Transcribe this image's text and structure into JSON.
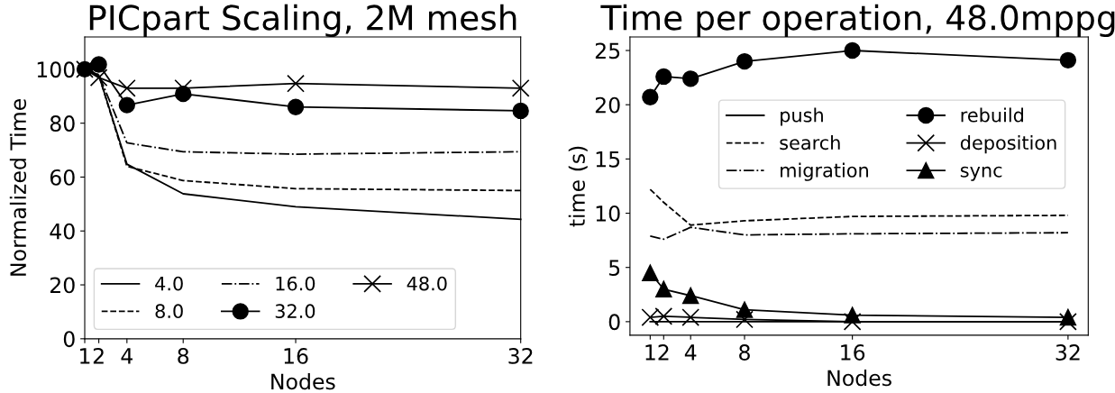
{
  "chart_data": [
    {
      "type": "line",
      "title": "PICpart Scaling, 2M mesh",
      "xlabel": "Nodes",
      "ylabel": "Normalized Time",
      "x": [
        1,
        2,
        4,
        8,
        16,
        32
      ],
      "xlim": [
        1,
        32
      ],
      "xticks": [
        1,
        2,
        4,
        8,
        16,
        32
      ],
      "ylim": [
        0,
        112
      ],
      "yticks": [
        0,
        20,
        40,
        60,
        80,
        100
      ],
      "grid": false,
      "legend": "bottom left",
      "series": [
        {
          "name": "4.0",
          "color": "#000000",
          "line_style": "solid",
          "marker": "none",
          "values": [
            100,
            97.8,
            64.8,
            53.8,
            49,
            44.3
          ]
        },
        {
          "name": "8.0",
          "color": "#000000",
          "line_style": "dashed",
          "marker": "none",
          "values": [
            100,
            97.8,
            64,
            58.7,
            55.7,
            55
          ]
        },
        {
          "name": "16.0",
          "color": "#000000",
          "line_style": "dashdot",
          "marker": "none",
          "values": [
            100,
            98,
            72.7,
            69.4,
            68.5,
            69.4
          ]
        },
        {
          "name": "32.0",
          "color": "#000000",
          "line_style": "solid",
          "marker": "circle",
          "values": [
            100,
            101.8,
            86.7,
            90.9,
            86,
            84.6
          ]
        },
        {
          "name": "48.0",
          "color": "#000000",
          "line_style": "solid",
          "marker": "cross",
          "values": [
            100,
            96.9,
            93,
            93,
            94.7,
            93
          ]
        }
      ]
    },
    {
      "type": "line",
      "title": "Time per operation, 48.0mppg",
      "xlabel": "Nodes",
      "ylabel": "time (s)",
      "x": [
        1,
        2,
        4,
        8,
        16,
        32
      ],
      "xlim": [
        -0.5,
        33.5
      ],
      "xticks": [
        1,
        2,
        4,
        8,
        16,
        32
      ],
      "ylim": [
        -1.25,
        26.25
      ],
      "yticks": [
        0,
        5,
        10,
        15,
        20,
        25
      ],
      "grid": false,
      "legend": "center right",
      "series": [
        {
          "name": "push",
          "color": "#000000",
          "line_style": "solid",
          "marker": "none",
          "values": [
            0,
            0,
            0,
            0,
            0,
            0
          ]
        },
        {
          "name": "search",
          "color": "#000000",
          "line_style": "dashed",
          "marker": "none",
          "values": [
            12.2,
            11,
            8.9,
            9.3,
            9.7,
            9.8
          ]
        },
        {
          "name": "migration",
          "color": "#000000",
          "line_style": "dashdot",
          "marker": "none",
          "values": [
            7.9,
            7.6,
            8.7,
            8.0,
            8.1,
            8.2
          ]
        },
        {
          "name": "rebuild",
          "color": "#000000",
          "line_style": "solid",
          "marker": "circle",
          "values": [
            20.7,
            22.6,
            22.4,
            24,
            25,
            24.1
          ]
        },
        {
          "name": "deposition",
          "color": "#000000",
          "line_style": "solid",
          "marker": "cross",
          "values": [
            0.4,
            0.5,
            0.4,
            0.2,
            0.0,
            0.0
          ]
        },
        {
          "name": "sync",
          "color": "#000000",
          "line_style": "solid",
          "marker": "triangle",
          "values": [
            4.5,
            3,
            2.4,
            1.1,
            0.6,
            0.4
          ]
        }
      ]
    }
  ]
}
